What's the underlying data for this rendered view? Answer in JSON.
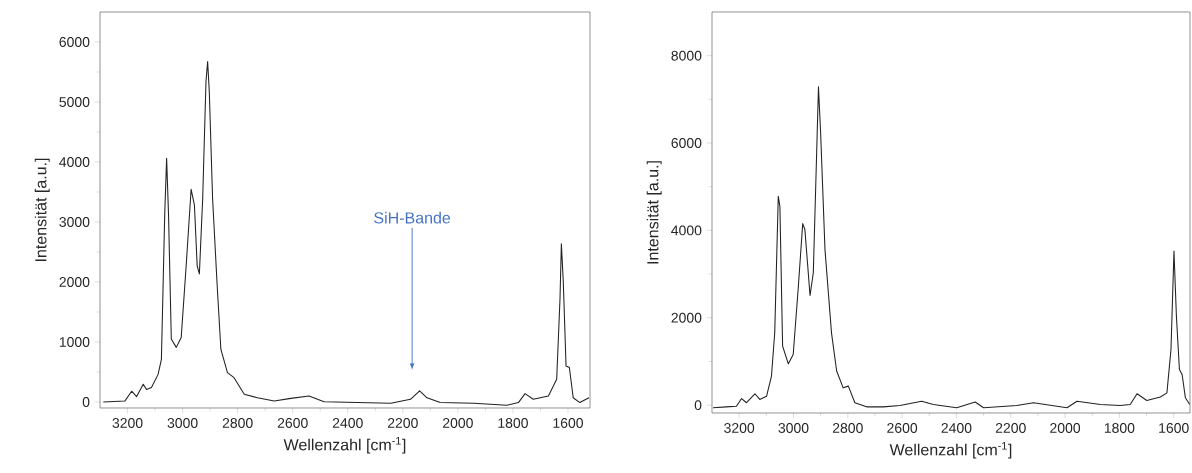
{
  "chart_data": [
    {
      "type": "line",
      "xlabel": "Wellenzahl [cm$^{-1}$]",
      "ylabel": "Intensität [a.u.]",
      "color": "#222222",
      "xlim": [
        3300,
        1520
      ],
      "ylim": [
        -100,
        6500
      ],
      "xticks": [
        3200,
        3000,
        2800,
        2600,
        2400,
        2200,
        2000,
        1800,
        1600
      ],
      "yticks": [
        0,
        1000,
        2000,
        3000,
        4000,
        5000,
        6000
      ],
      "annotations": [
        "SiH-Bande"
      ],
      "x": [
        3288,
        3210,
        3185,
        3167,
        3143,
        3131,
        3113,
        3089,
        3077,
        3065,
        3058,
        3051,
        3041,
        3023,
        3005,
        2987,
        2969,
        2957,
        2947,
        2939,
        2927,
        2915,
        2909,
        2903,
        2891,
        2875,
        2861,
        2837,
        2813,
        2776,
        2728,
        2667,
        2607,
        2541,
        2486,
        2365,
        2244,
        2172,
        2139,
        2112,
        2064,
        1943,
        1822,
        1780,
        1756,
        1726,
        1671,
        1641,
        1629,
        1624,
        1617,
        1607,
        1595,
        1581,
        1557,
        1524
      ],
      "values": [
        0,
        15,
        180,
        90,
        295,
        210,
        240,
        460,
        710,
        3110,
        4060,
        3110,
        1050,
        910,
        1075,
        2270,
        3545,
        3280,
        2270,
        2135,
        3390,
        5340,
        5675,
        5175,
        3390,
        1995,
        880,
        490,
        405,
        130,
        70,
        15,
        60,
        100,
        5,
        -10,
        -20,
        45,
        185,
        70,
        -10,
        -20,
        -55,
        -10,
        140,
        45,
        100,
        380,
        1715,
        2635,
        2000,
        600,
        575,
        70,
        -10,
        70
      ]
    },
    {
      "type": "line",
      "xlabel": "Wellenzahl [cm$^{-1}$]",
      "ylabel": "Intensität [a.u.]",
      "color": "#222222",
      "xlim": [
        3300,
        1540
      ],
      "ylim": [
        -180,
        9000
      ],
      "xticks": [
        3200,
        3000,
        2800,
        2600,
        2400,
        2200,
        2000,
        1800,
        1600
      ],
      "yticks": [
        0,
        2000,
        4000,
        6000,
        8000
      ],
      "x": [
        3296,
        3247,
        3210,
        3191,
        3173,
        3142,
        3124,
        3099,
        3081,
        3069,
        3056,
        3050,
        3040,
        3019,
        3001,
        2982,
        2966,
        2958,
        2939,
        2927,
        2915,
        2908,
        2900,
        2884,
        2860,
        2841,
        2817,
        2798,
        2774,
        2731,
        2669,
        2608,
        2528,
        2485,
        2399,
        2331,
        2300,
        2178,
        2116,
        1993,
        1956,
        1870,
        1797,
        1760,
        1735,
        1699,
        1649,
        1625,
        1610,
        1599,
        1590,
        1579,
        1569,
        1557,
        1541
      ],
      "values": [
        -60,
        -40,
        -25,
        150,
        55,
        260,
        130,
        205,
        665,
        1655,
        4780,
        4550,
        1350,
        945,
        1160,
        2720,
        4155,
        4020,
        2510,
        3030,
        5695,
        7285,
        6230,
        3560,
        1655,
        780,
        395,
        435,
        55,
        -40,
        -40,
        -10,
        90,
        15,
        -60,
        70,
        -60,
        -10,
        55,
        -60,
        90,
        15,
        -10,
        15,
        260,
        105,
        185,
        280,
        1275,
        3525,
        2035,
        815,
        700,
        170,
        15
      ]
    }
  ]
}
